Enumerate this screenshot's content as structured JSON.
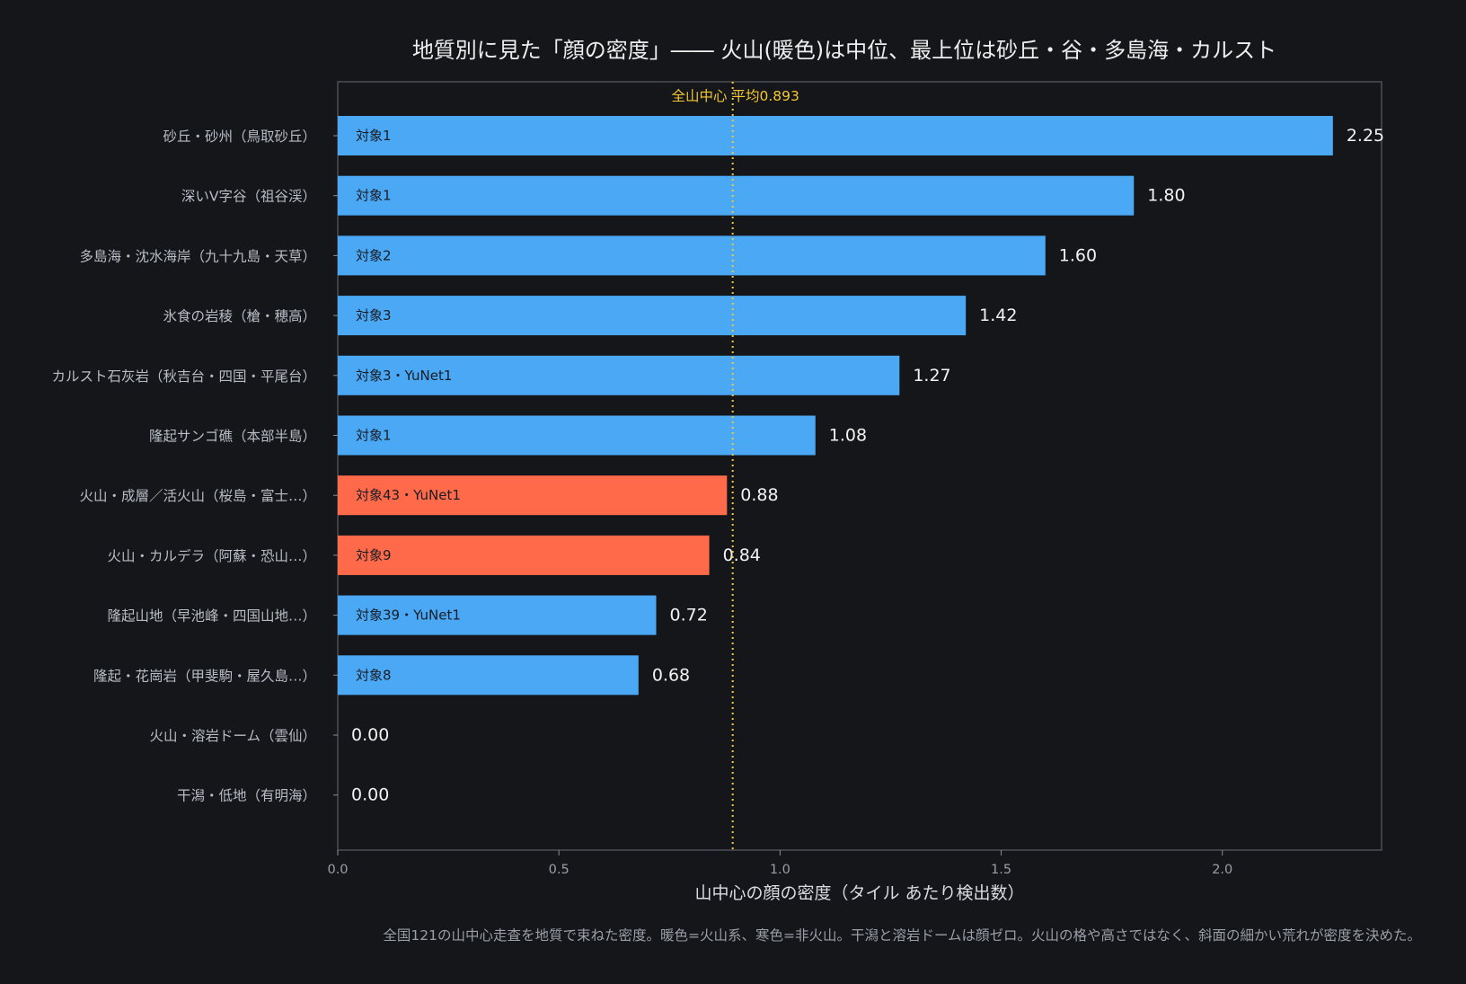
{
  "chart_data": {
    "type": "bar",
    "orientation": "horizontal",
    "title": "地質別に見た「顔の密度」―― 火山(暖色)は中位、最上位は砂丘・谷・多島海・カルスト",
    "xlabel": "山中心の顔の密度（タイル あたり検出数）",
    "xlim": [
      0,
      2.36
    ],
    "xticks": [
      0,
      0.5,
      1.0,
      1.5,
      2.0
    ],
    "xtick_labels": [
      "0.0",
      "0.5",
      "1.0",
      "1.5",
      "2.0"
    ],
    "grid": false,
    "categories": [
      "砂丘・砂州（鳥取砂丘）",
      "深いV字谷（祖谷渓）",
      "多島海・沈水海岸（九十九島・天草）",
      "氷食の岩稜（槍・穂高）",
      "カルスト石灰岩（秋吉台・四国・平尾台）",
      "隆起サンゴ礁（本部半島）",
      "火山・成層／活火山（桜島・富士…）",
      "火山・カルデラ（阿蘇・恐山…）",
      "隆起山地（早池峰・四国山地…）",
      "隆起・花崗岩（甲斐駒・屋久島…）",
      "火山・溶岩ドーム（雲仙）",
      "干潟・低地（有明海）"
    ],
    "values": [
      2.25,
      1.8,
      1.6,
      1.42,
      1.27,
      1.08,
      0.88,
      0.84,
      0.72,
      0.68,
      0.0,
      0.0
    ],
    "value_labels": [
      "2.25",
      "1.80",
      "1.60",
      "1.42",
      "1.27",
      "1.08",
      "0.88",
      "0.84",
      "0.72",
      "0.68",
      "0.00",
      "0.00"
    ],
    "bar_labels": [
      "対象1",
      "対象1",
      "対象2",
      "対象3",
      "対象3・YuNet1",
      "対象1",
      "対象43・YuNet1",
      "対象9",
      "対象39・YuNet1",
      "対象8",
      "",
      ""
    ],
    "is_volcanic": [
      false,
      false,
      false,
      false,
      false,
      false,
      true,
      true,
      false,
      false,
      true,
      false
    ],
    "mean_line": {
      "value": 0.893,
      "label": "全山中心 平均0.893"
    },
    "colors": {
      "non_volcanic": "#4aa8f4",
      "volcanic": "#ff6a4a",
      "mean_line": "#f3c733"
    },
    "caption": "全国121の山中心走査を地質で束ねた密度。暖色=火山系、寒色=非火山。干潟と溶岩ドームは顔ゼロ。火山の格や高さではなく、斜面の細かい荒れが密度を決めた。"
  }
}
